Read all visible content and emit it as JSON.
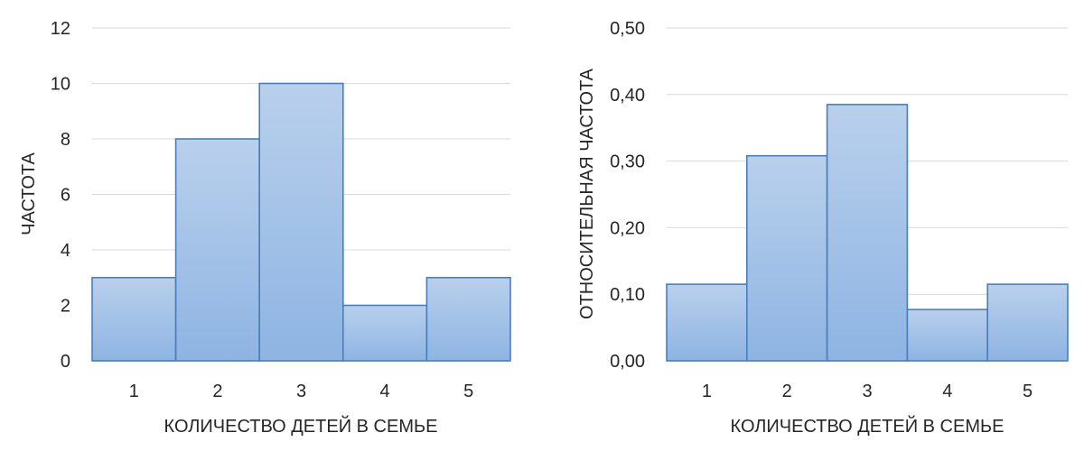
{
  "chart_data": [
    {
      "type": "bar",
      "categories": [
        "1",
        "2",
        "3",
        "4",
        "5"
      ],
      "values": [
        3,
        8,
        10,
        2,
        3
      ],
      "xlabel": "КОЛИЧЕСТВО ДЕТЕЙ В СЕМЬЕ",
      "ylabel": "ЧАСТОТА",
      "ylim": [
        0,
        12
      ],
      "yticks": [
        "0",
        "2",
        "4",
        "6",
        "8",
        "10",
        "12"
      ],
      "grid": true,
      "bar_gap": 0,
      "colors": {
        "fill_top": "#b9d0ec",
        "fill_bottom": "#8eb4e3",
        "stroke": "#4a7ebb"
      }
    },
    {
      "type": "bar",
      "categories": [
        "1",
        "2",
        "3",
        "4",
        "5"
      ],
      "values": [
        0.115,
        0.308,
        0.385,
        0.077,
        0.115
      ],
      "xlabel": "КОЛИЧЕСТВО ДЕТЕЙ В СЕМЬЕ",
      "ylabel": "ОТНОСИТЕЛЬНАЯ ЧАСТОТА",
      "ylim": [
        0,
        0.5
      ],
      "yticks": [
        "0,00",
        "0,10",
        "0,20",
        "0,30",
        "0,40",
        "0,50"
      ],
      "grid": true,
      "bar_gap": 0,
      "colors": {
        "fill_top": "#b9d0ec",
        "fill_bottom": "#8eb4e3",
        "stroke": "#4a7ebb"
      }
    }
  ]
}
